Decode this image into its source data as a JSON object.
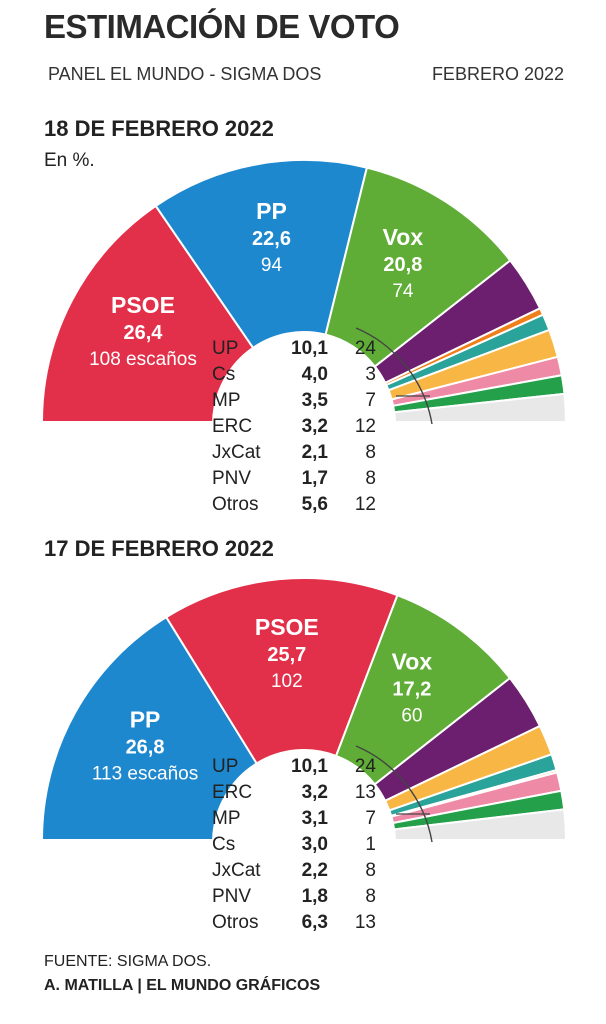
{
  "header": {
    "title": "ESTIMACIÓN DE VOTO",
    "subtitle": "PANEL EL MUNDO - SIGMA DOS",
    "date": "FEBRERO 2022",
    "unit": "En %."
  },
  "footer": {
    "source": "FUENTE: SIGMA DOS.",
    "credit": "A. MATILLA | EL MUNDO GRÁFICOS"
  },
  "chart_data": [
    {
      "type": "pie",
      "title": "18 DE FEBRERO 2022",
      "big_parties": [
        {
          "name": "PSOE",
          "pct": "26,4",
          "seats": 108,
          "seats_label": "108 escaños",
          "color": "#e3304a"
        },
        {
          "name": "PP",
          "pct": "22,6",
          "seats": 94,
          "seats_label": "94",
          "color": "#1e88cf"
        },
        {
          "name": "Vox",
          "pct": "20,8",
          "seats": 74,
          "seats_label": "74",
          "color": "#5fad36"
        }
      ],
      "small_parties": [
        {
          "name": "UP",
          "pct": "10,1",
          "seats": 24,
          "color": "#6b1f6e"
        },
        {
          "name": "Cs",
          "pct": "4,0",
          "seats": 3,
          "color": "#ef7f1a"
        },
        {
          "name": "MP",
          "pct": "3,5",
          "seats": 7,
          "color": "#2aa39a"
        },
        {
          "name": "ERC",
          "pct": "3,2",
          "seats": 12,
          "color": "#f8b745"
        },
        {
          "name": "JxCat",
          "pct": "2,1",
          "seats": 8,
          "color": "#ee8aa5"
        },
        {
          "name": "PNV",
          "pct": "1,7",
          "seats": 8,
          "color": "#24a04a"
        },
        {
          "name": "Otros",
          "pct": "5,6",
          "seats": 12,
          "color": "#e8e8e8"
        }
      ]
    },
    {
      "type": "pie",
      "title": "17 DE FEBRERO 2022",
      "big_parties": [
        {
          "name": "PP",
          "pct": "26,8",
          "seats": 113,
          "seats_label": "113 escaños",
          "color": "#1e88cf"
        },
        {
          "name": "PSOE",
          "pct": "25,7",
          "seats": 102,
          "seats_label": "102",
          "color": "#e3304a"
        },
        {
          "name": "Vox",
          "pct": "17,2",
          "seats": 60,
          "seats_label": "60",
          "color": "#5fad36"
        }
      ],
      "small_parties": [
        {
          "name": "UP",
          "pct": "10,1",
          "seats": 24,
          "color": "#6b1f6e"
        },
        {
          "name": "ERC",
          "pct": "3,2",
          "seats": 13,
          "color": "#f8b745"
        },
        {
          "name": "MP",
          "pct": "3,1",
          "seats": 7,
          "color": "#2aa39a"
        },
        {
          "name": "Cs",
          "pct": "3,0",
          "seats": 1,
          "color": "#ef7f1a"
        },
        {
          "name": "JxCat",
          "pct": "2,2",
          "seats": 8,
          "color": "#ee8aa5"
        },
        {
          "name": "PNV",
          "pct": "1,8",
          "seats": 8,
          "color": "#24a04a"
        },
        {
          "name": "Otros",
          "pct": "6,3",
          "seats": 13,
          "color": "#e8e8e8"
        }
      ]
    }
  ]
}
